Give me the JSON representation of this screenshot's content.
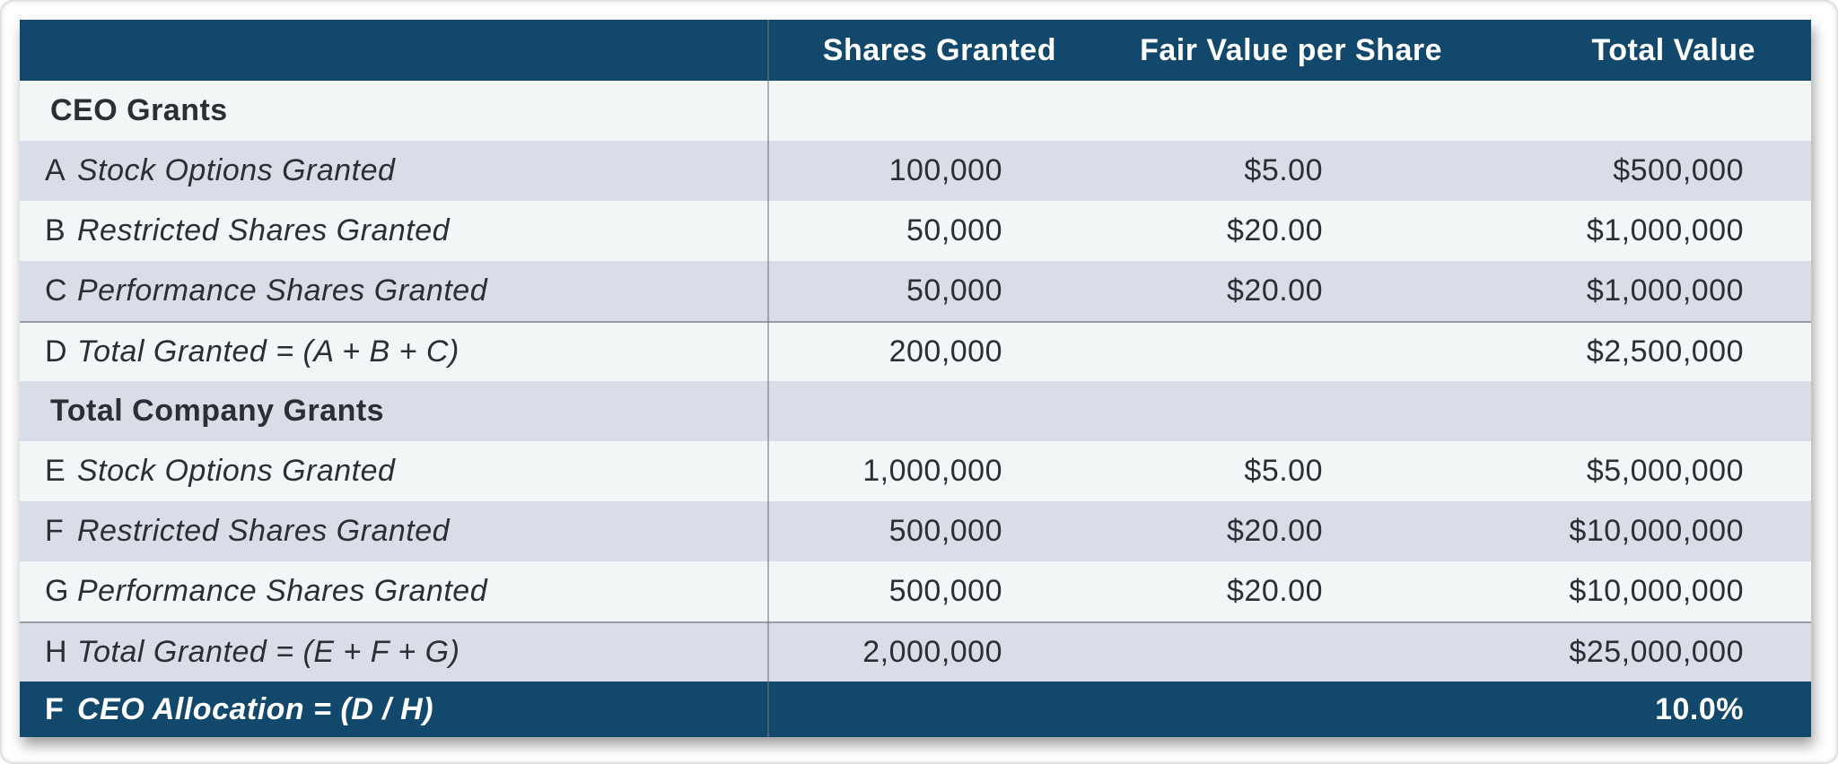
{
  "colors": {
    "header_navy": "#11486b",
    "row_lavender": "#d9dde8",
    "row_light": "#f3f6f7",
    "text_dark": "#2d2e34",
    "column_divider_gray": "#6c7480",
    "total_separator_gray": "#9a9da5",
    "header_text": "#ffffff"
  },
  "table": {
    "columns": [
      "",
      "Shares Granted",
      "Fair Value per Share",
      "Total Value"
    ],
    "sections": [
      {
        "title": "CEO Grants",
        "rows": [
          {
            "letter": "A",
            "label": "Stock Options Granted",
            "shares": "100,000",
            "fair_value": "$5.00",
            "total": "$500,000"
          },
          {
            "letter": "B",
            "label": "Restricted Shares Granted",
            "shares": "50,000",
            "fair_value": "$20.00",
            "total": "$1,000,000"
          },
          {
            "letter": "C",
            "label": "Performance Shares Granted",
            "shares": "50,000",
            "fair_value": "$20.00",
            "total": "$1,000,000"
          },
          {
            "letter": "D",
            "label": "Total Granted = (A + B + C)",
            "shares": "200,000",
            "fair_value": "",
            "total": "$2,500,000"
          }
        ]
      },
      {
        "title": "Total Company Grants",
        "rows": [
          {
            "letter": "E",
            "label": "Stock Options Granted",
            "shares": "1,000,000",
            "fair_value": "$5.00",
            "total": "$5,000,000"
          },
          {
            "letter": "F",
            "label": "Restricted Shares Granted",
            "shares": "500,000",
            "fair_value": "$20.00",
            "total": "$10,000,000"
          },
          {
            "letter": "G",
            "label": "Performance Shares Granted",
            "shares": "500,000",
            "fair_value": "$20.00",
            "total": "$10,000,000"
          },
          {
            "letter": "H",
            "label": "Total Granted = (E + F + G)",
            "shares": "2,000,000",
            "fair_value": "",
            "total": "$25,000,000"
          }
        ]
      }
    ],
    "footer": {
      "letter": "F",
      "label": "CEO Allocation = (D / H)",
      "shares": "",
      "fair_value": "",
      "value": "10.0%"
    }
  }
}
